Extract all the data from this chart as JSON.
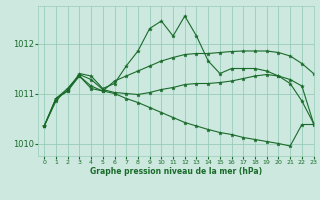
{
  "title": "Graphe pression niveau de la mer (hPa)",
  "xlim": [
    -0.5,
    23
  ],
  "ylim": [
    1009.75,
    1012.75
  ],
  "yticks": [
    1010,
    1011,
    1012
  ],
  "xticks": [
    0,
    1,
    2,
    3,
    4,
    5,
    6,
    7,
    8,
    9,
    10,
    11,
    12,
    13,
    14,
    15,
    16,
    17,
    18,
    19,
    20,
    21,
    22,
    23
  ],
  "bg_color": "#cce8df",
  "grid_color": "#99ccbb",
  "line_color": "#1a6b2a",
  "series": [
    [
      1010.35,
      1010.9,
      1011.05,
      1011.4,
      1011.35,
      1011.1,
      1011.2,
      1011.55,
      1011.85,
      1012.3,
      1012.45,
      1012.15,
      1012.55,
      1012.15,
      1011.65,
      1011.4,
      1011.5,
      1011.5,
      1011.5,
      1011.45,
      1011.35,
      1011.2,
      1010.85,
      1010.4
    ],
    [
      1010.35,
      1010.9,
      1011.05,
      1011.35,
      1011.1,
      1011.05,
      1011.25,
      1011.35,
      1011.45,
      1011.55,
      1011.65,
      1011.72,
      1011.78,
      1011.8,
      1011.8,
      1011.82,
      1011.84,
      1011.85,
      1011.85,
      1011.85,
      1011.82,
      1011.75,
      1011.6,
      1011.4
    ],
    [
      1010.35,
      1010.85,
      1011.1,
      1011.38,
      1011.28,
      1011.08,
      1011.02,
      1011.0,
      1010.98,
      1011.02,
      1011.08,
      1011.12,
      1011.18,
      1011.2,
      1011.2,
      1011.22,
      1011.25,
      1011.3,
      1011.35,
      1011.38,
      1011.35,
      1011.28,
      1011.15,
      1010.4
    ],
    [
      1010.35,
      1010.9,
      1011.1,
      1011.35,
      1011.15,
      1011.05,
      1011.0,
      1010.9,
      1010.82,
      1010.72,
      1010.62,
      1010.52,
      1010.42,
      1010.35,
      1010.28,
      1010.22,
      1010.18,
      1010.12,
      1010.08,
      1010.04,
      1010.0,
      1009.95,
      1010.38,
      1010.38
    ]
  ]
}
